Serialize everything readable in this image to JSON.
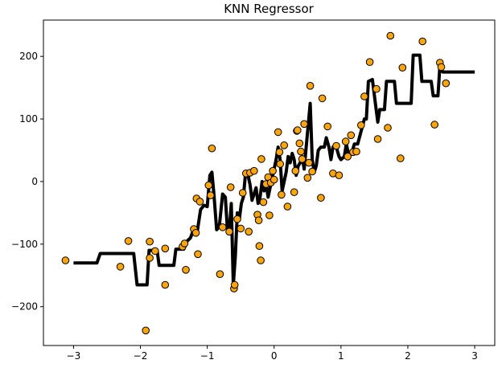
{
  "chart_data": {
    "type": "scatter",
    "title": "KNN Regressor",
    "xlabel": "",
    "ylabel": "",
    "xlim": [
      -3.45,
      3.3
    ],
    "ylim": [
      -262,
      258
    ],
    "xticks": [
      -3,
      -2,
      -1,
      0,
      1,
      2,
      3
    ],
    "xtick_labels": [
      "−3",
      "−2",
      "−1",
      "0",
      "1",
      "2",
      "3"
    ],
    "yticks": [
      -200,
      -100,
      0,
      100,
      200
    ],
    "ytick_labels": [
      "−200",
      "−100",
      "0",
      "100",
      "200"
    ],
    "grid": false,
    "legend": "none",
    "colors": {
      "points_fill": "#ffa500",
      "points_edge": "#000000",
      "line": "#000000"
    },
    "series": [
      {
        "kind": "scatter",
        "points": [
          [
            -3.12,
            -126
          ],
          [
            -2.3,
            -136
          ],
          [
            -2.18,
            -95
          ],
          [
            -1.92,
            -238
          ],
          [
            -1.86,
            -96
          ],
          [
            -1.86,
            -122
          ],
          [
            -1.78,
            -111
          ],
          [
            -1.63,
            -165
          ],
          [
            -1.63,
            -107
          ],
          [
            -1.37,
            -104
          ],
          [
            -1.34,
            -99
          ],
          [
            -1.32,
            -141
          ],
          [
            -1.2,
            -76
          ],
          [
            -1.17,
            -82
          ],
          [
            -1.16,
            -27
          ],
          [
            -1.14,
            -116
          ],
          [
            -1.11,
            -32
          ],
          [
            -0.98,
            -6
          ],
          [
            -0.95,
            -22
          ],
          [
            -0.93,
            53
          ],
          [
            -0.81,
            -148
          ],
          [
            -0.77,
            -73
          ],
          [
            -0.67,
            -80
          ],
          [
            -0.65,
            -9
          ],
          [
            -0.6,
            -171
          ],
          [
            -0.59,
            -165
          ],
          [
            -0.55,
            -60
          ],
          [
            -0.5,
            -75
          ],
          [
            -0.47,
            -18
          ],
          [
            -0.42,
            13
          ],
          [
            -0.38,
            -80
          ],
          [
            -0.36,
            14
          ],
          [
            -0.3,
            17
          ],
          [
            -0.25,
            -53
          ],
          [
            -0.23,
            -62
          ],
          [
            -0.22,
            -103
          ],
          [
            -0.2,
            -126
          ],
          [
            -0.19,
            36
          ],
          [
            -0.16,
            -33
          ],
          [
            -0.12,
            -4
          ],
          [
            -0.09,
            7
          ],
          [
            -0.07,
            -54
          ],
          [
            -0.05,
            -2
          ],
          [
            -0.02,
            17
          ],
          [
            0.0,
            3
          ],
          [
            0.06,
            79
          ],
          [
            0.08,
            47
          ],
          [
            0.09,
            28
          ],
          [
            0.11,
            -21
          ],
          [
            0.15,
            58
          ],
          [
            0.2,
            -40
          ],
          [
            0.3,
            -17
          ],
          [
            0.32,
            17
          ],
          [
            0.34,
            81
          ],
          [
            0.35,
            82
          ],
          [
            0.38,
            61
          ],
          [
            0.4,
            48
          ],
          [
            0.42,
            36
          ],
          [
            0.45,
            92
          ],
          [
            0.5,
            6
          ],
          [
            0.52,
            30
          ],
          [
            0.54,
            153
          ],
          [
            0.57,
            16
          ],
          [
            0.7,
            -26
          ],
          [
            0.72,
            133
          ],
          [
            0.8,
            88
          ],
          [
            0.88,
            13
          ],
          [
            0.93,
            57
          ],
          [
            0.97,
            10
          ],
          [
            1.07,
            64
          ],
          [
            1.1,
            40
          ],
          [
            1.15,
            74
          ],
          [
            1.18,
            47
          ],
          [
            1.23,
            48
          ],
          [
            1.3,
            90
          ],
          [
            1.35,
            136
          ],
          [
            1.43,
            191
          ],
          [
            1.53,
            148
          ],
          [
            1.55,
            68
          ],
          [
            1.7,
            86
          ],
          [
            1.74,
            233
          ],
          [
            1.89,
            37
          ],
          [
            1.92,
            182
          ],
          [
            2.22,
            224
          ],
          [
            2.4,
            91
          ],
          [
            2.48,
            190
          ],
          [
            2.5,
            183
          ],
          [
            2.57,
            157
          ]
        ]
      },
      {
        "kind": "line",
        "points": [
          [
            -3.0,
            -130
          ],
          [
            -2.65,
            -130
          ],
          [
            -2.6,
            -115
          ],
          [
            -2.1,
            -115
          ],
          [
            -2.05,
            -165
          ],
          [
            -1.9,
            -165
          ],
          [
            -1.87,
            -110
          ],
          [
            -1.75,
            -110
          ],
          [
            -1.72,
            -134
          ],
          [
            -1.5,
            -134
          ],
          [
            -1.47,
            -108
          ],
          [
            -1.35,
            -108
          ],
          [
            -1.3,
            -95
          ],
          [
            -1.25,
            -90
          ],
          [
            -1.2,
            -75
          ],
          [
            -1.15,
            -80
          ],
          [
            -1.1,
            -45
          ],
          [
            -1.05,
            -38
          ],
          [
            -1.0,
            -40
          ],
          [
            -0.96,
            10
          ],
          [
            -0.93,
            15
          ],
          [
            -0.9,
            -20
          ],
          [
            -0.86,
            -77
          ],
          [
            -0.82,
            -72
          ],
          [
            -0.77,
            -20
          ],
          [
            -0.73,
            -25
          ],
          [
            -0.7,
            -75
          ],
          [
            -0.67,
            -80
          ],
          [
            -0.64,
            -35
          ],
          [
            -0.61,
            -165
          ],
          [
            -0.58,
            -120
          ],
          [
            -0.55,
            -50
          ],
          [
            -0.52,
            -60
          ],
          [
            -0.49,
            -35
          ],
          [
            -0.46,
            -25
          ],
          [
            -0.43,
            10
          ],
          [
            -0.4,
            15
          ],
          [
            -0.36,
            -5
          ],
          [
            -0.33,
            -30
          ],
          [
            -0.3,
            -20
          ],
          [
            -0.27,
            -10
          ],
          [
            -0.24,
            -35
          ],
          [
            -0.21,
            -25
          ],
          [
            -0.18,
            0
          ],
          [
            -0.15,
            -15
          ],
          [
            -0.12,
            -5
          ],
          [
            -0.09,
            -25
          ],
          [
            -0.06,
            -10
          ],
          [
            -0.03,
            5
          ],
          [
            0.0,
            20
          ],
          [
            0.03,
            35
          ],
          [
            0.06,
            55
          ],
          [
            0.09,
            35
          ],
          [
            0.12,
            -15
          ],
          [
            0.15,
            0
          ],
          [
            0.18,
            15
          ],
          [
            0.21,
            40
          ],
          [
            0.24,
            30
          ],
          [
            0.27,
            45
          ],
          [
            0.3,
            35
          ],
          [
            0.33,
            10
          ],
          [
            0.36,
            25
          ],
          [
            0.39,
            30
          ],
          [
            0.42,
            40
          ],
          [
            0.45,
            20
          ],
          [
            0.48,
            55
          ],
          [
            0.51,
            90
          ],
          [
            0.54,
            125
          ],
          [
            0.57,
            35
          ],
          [
            0.6,
            15
          ],
          [
            0.63,
            25
          ],
          [
            0.66,
            50
          ],
          [
            0.7,
            55
          ],
          [
            0.75,
            55
          ],
          [
            0.78,
            70
          ],
          [
            0.82,
            55
          ],
          [
            0.85,
            35
          ],
          [
            0.88,
            55
          ],
          [
            0.93,
            55
          ],
          [
            0.97,
            40
          ],
          [
            1.0,
            35
          ],
          [
            1.05,
            40
          ],
          [
            1.08,
            60
          ],
          [
            1.12,
            40
          ],
          [
            1.16,
            45
          ],
          [
            1.2,
            60
          ],
          [
            1.25,
            60
          ],
          [
            1.3,
            80
          ],
          [
            1.35,
            100
          ],
          [
            1.38,
            100
          ],
          [
            1.41,
            160
          ],
          [
            1.47,
            163
          ],
          [
            1.52,
            120
          ],
          [
            1.55,
            95
          ],
          [
            1.58,
            115
          ],
          [
            1.65,
            115
          ],
          [
            1.68,
            160
          ],
          [
            1.8,
            160
          ],
          [
            1.83,
            125
          ],
          [
            1.95,
            125
          ],
          [
            2.05,
            125
          ],
          [
            2.08,
            202
          ],
          [
            2.18,
            202
          ],
          [
            2.21,
            160
          ],
          [
            2.35,
            160
          ],
          [
            2.38,
            137
          ],
          [
            2.45,
            137
          ],
          [
            2.48,
            185
          ],
          [
            2.52,
            175
          ],
          [
            3.0,
            175
          ]
        ]
      }
    ]
  }
}
